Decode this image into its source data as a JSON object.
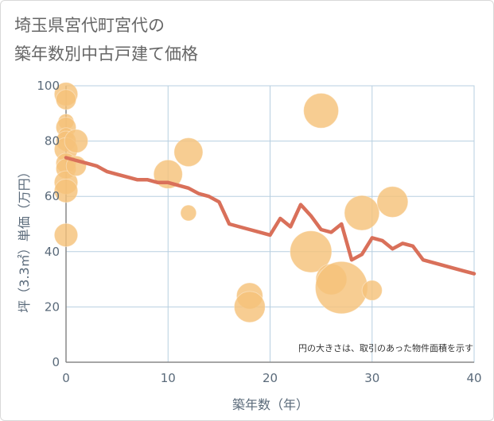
{
  "title_line1": "埼玉県宮代町宮代の",
  "title_line2": "築年数別中古戸建て価格",
  "chart_data": {
    "type": "scatter",
    "title": "埼玉県宮代町宮代の築年数別中古戸建て価格",
    "xlabel": "築年数（年）",
    "ylabel": "坪（3.3㎡）単価（万円）",
    "xlim": [
      0,
      40
    ],
    "ylim": [
      0,
      100
    ],
    "xticks": [
      0,
      10,
      20,
      30,
      40
    ],
    "yticks": [
      0,
      20,
      40,
      60,
      80,
      100
    ],
    "grid": true,
    "note": "円の大きさは、取引のあった物件面積を示す",
    "colors": {
      "bubble": "#f5c27a",
      "line": "#d9705a",
      "grid": "#b7cfe0",
      "axis": "#888888"
    },
    "bubbles": [
      {
        "x": 0,
        "y": 97,
        "size": 3
      },
      {
        "x": 0,
        "y": 95,
        "size": 2
      },
      {
        "x": 0,
        "y": 87,
        "size": 1
      },
      {
        "x": 0,
        "y": 85,
        "size": 2
      },
      {
        "x": 0,
        "y": 82,
        "size": 1
      },
      {
        "x": 0,
        "y": 80,
        "size": 2
      },
      {
        "x": 0,
        "y": 77,
        "size": 3
      },
      {
        "x": 0,
        "y": 72,
        "size": 2
      },
      {
        "x": 0,
        "y": 70,
        "size": 2
      },
      {
        "x": 0,
        "y": 65,
        "size": 3
      },
      {
        "x": 0,
        "y": 62,
        "size": 3
      },
      {
        "x": 0,
        "y": 46,
        "size": 3
      },
      {
        "x": 1,
        "y": 80,
        "size": 3
      },
      {
        "x": 1,
        "y": 71,
        "size": 2
      },
      {
        "x": 10,
        "y": 68,
        "size": 5
      },
      {
        "x": 12,
        "y": 76,
        "size": 5
      },
      {
        "x": 12,
        "y": 54,
        "size": 1
      },
      {
        "x": 18,
        "y": 24,
        "size": 4
      },
      {
        "x": 18,
        "y": 20,
        "size": 6
      },
      {
        "x": 24,
        "y": 40,
        "size": 12
      },
      {
        "x": 25,
        "y": 91,
        "size": 8
      },
      {
        "x": 26,
        "y": 30,
        "size": 6
      },
      {
        "x": 27,
        "y": 27,
        "size": 20
      },
      {
        "x": 29,
        "y": 54,
        "size": 8
      },
      {
        "x": 30,
        "y": 26,
        "size": 2
      },
      {
        "x": 32,
        "y": 58,
        "size": 6
      }
    ],
    "trend": {
      "x": [
        0,
        1,
        2,
        3,
        4,
        5,
        6,
        7,
        8,
        9,
        10,
        11,
        12,
        13,
        14,
        15,
        16,
        17,
        18,
        19,
        20,
        21,
        22,
        23,
        24,
        25,
        26,
        27,
        28,
        29,
        30,
        31,
        32,
        33,
        34,
        35,
        36,
        37,
        38,
        39,
        40
      ],
      "y": [
        74,
        73,
        72,
        71,
        69,
        68,
        67,
        66,
        66,
        65,
        65,
        64,
        63,
        61,
        60,
        58,
        50,
        49,
        48,
        47,
        46,
        52,
        49,
        57,
        53,
        48,
        47,
        50,
        37,
        39,
        45,
        44,
        41,
        43,
        42,
        37,
        36,
        35,
        34,
        33,
        32
      ]
    }
  }
}
